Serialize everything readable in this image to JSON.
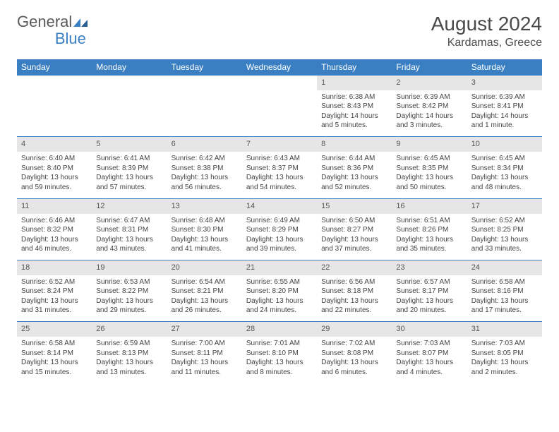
{
  "logo": {
    "text1": "General",
    "text2": "Blue"
  },
  "title": {
    "month": "August 2024",
    "location": "Kardamas, Greece"
  },
  "colors": {
    "header_bg": "#3a7fc2",
    "header_fg": "#ffffff",
    "daynum_bg": "#e6e6e6",
    "row_border": "#3a7fc2",
    "text": "#444444"
  },
  "weekdays": [
    "Sunday",
    "Monday",
    "Tuesday",
    "Wednesday",
    "Thursday",
    "Friday",
    "Saturday"
  ],
  "weeks": [
    {
      "days": [
        null,
        null,
        null,
        null,
        {
          "n": "1",
          "sr": "Sunrise: 6:38 AM",
          "ss": "Sunset: 8:43 PM",
          "d1": "Daylight: 14 hours",
          "d2": "and 5 minutes."
        },
        {
          "n": "2",
          "sr": "Sunrise: 6:39 AM",
          "ss": "Sunset: 8:42 PM",
          "d1": "Daylight: 14 hours",
          "d2": "and 3 minutes."
        },
        {
          "n": "3",
          "sr": "Sunrise: 6:39 AM",
          "ss": "Sunset: 8:41 PM",
          "d1": "Daylight: 14 hours",
          "d2": "and 1 minute."
        }
      ]
    },
    {
      "days": [
        {
          "n": "4",
          "sr": "Sunrise: 6:40 AM",
          "ss": "Sunset: 8:40 PM",
          "d1": "Daylight: 13 hours",
          "d2": "and 59 minutes."
        },
        {
          "n": "5",
          "sr": "Sunrise: 6:41 AM",
          "ss": "Sunset: 8:39 PM",
          "d1": "Daylight: 13 hours",
          "d2": "and 57 minutes."
        },
        {
          "n": "6",
          "sr": "Sunrise: 6:42 AM",
          "ss": "Sunset: 8:38 PM",
          "d1": "Daylight: 13 hours",
          "d2": "and 56 minutes."
        },
        {
          "n": "7",
          "sr": "Sunrise: 6:43 AM",
          "ss": "Sunset: 8:37 PM",
          "d1": "Daylight: 13 hours",
          "d2": "and 54 minutes."
        },
        {
          "n": "8",
          "sr": "Sunrise: 6:44 AM",
          "ss": "Sunset: 8:36 PM",
          "d1": "Daylight: 13 hours",
          "d2": "and 52 minutes."
        },
        {
          "n": "9",
          "sr": "Sunrise: 6:45 AM",
          "ss": "Sunset: 8:35 PM",
          "d1": "Daylight: 13 hours",
          "d2": "and 50 minutes."
        },
        {
          "n": "10",
          "sr": "Sunrise: 6:45 AM",
          "ss": "Sunset: 8:34 PM",
          "d1": "Daylight: 13 hours",
          "d2": "and 48 minutes."
        }
      ]
    },
    {
      "days": [
        {
          "n": "11",
          "sr": "Sunrise: 6:46 AM",
          "ss": "Sunset: 8:32 PM",
          "d1": "Daylight: 13 hours",
          "d2": "and 46 minutes."
        },
        {
          "n": "12",
          "sr": "Sunrise: 6:47 AM",
          "ss": "Sunset: 8:31 PM",
          "d1": "Daylight: 13 hours",
          "d2": "and 43 minutes."
        },
        {
          "n": "13",
          "sr": "Sunrise: 6:48 AM",
          "ss": "Sunset: 8:30 PM",
          "d1": "Daylight: 13 hours",
          "d2": "and 41 minutes."
        },
        {
          "n": "14",
          "sr": "Sunrise: 6:49 AM",
          "ss": "Sunset: 8:29 PM",
          "d1": "Daylight: 13 hours",
          "d2": "and 39 minutes."
        },
        {
          "n": "15",
          "sr": "Sunrise: 6:50 AM",
          "ss": "Sunset: 8:27 PM",
          "d1": "Daylight: 13 hours",
          "d2": "and 37 minutes."
        },
        {
          "n": "16",
          "sr": "Sunrise: 6:51 AM",
          "ss": "Sunset: 8:26 PM",
          "d1": "Daylight: 13 hours",
          "d2": "and 35 minutes."
        },
        {
          "n": "17",
          "sr": "Sunrise: 6:52 AM",
          "ss": "Sunset: 8:25 PM",
          "d1": "Daylight: 13 hours",
          "d2": "and 33 minutes."
        }
      ]
    },
    {
      "days": [
        {
          "n": "18",
          "sr": "Sunrise: 6:52 AM",
          "ss": "Sunset: 8:24 PM",
          "d1": "Daylight: 13 hours",
          "d2": "and 31 minutes."
        },
        {
          "n": "19",
          "sr": "Sunrise: 6:53 AM",
          "ss": "Sunset: 8:22 PM",
          "d1": "Daylight: 13 hours",
          "d2": "and 29 minutes."
        },
        {
          "n": "20",
          "sr": "Sunrise: 6:54 AM",
          "ss": "Sunset: 8:21 PM",
          "d1": "Daylight: 13 hours",
          "d2": "and 26 minutes."
        },
        {
          "n": "21",
          "sr": "Sunrise: 6:55 AM",
          "ss": "Sunset: 8:20 PM",
          "d1": "Daylight: 13 hours",
          "d2": "and 24 minutes."
        },
        {
          "n": "22",
          "sr": "Sunrise: 6:56 AM",
          "ss": "Sunset: 8:18 PM",
          "d1": "Daylight: 13 hours",
          "d2": "and 22 minutes."
        },
        {
          "n": "23",
          "sr": "Sunrise: 6:57 AM",
          "ss": "Sunset: 8:17 PM",
          "d1": "Daylight: 13 hours",
          "d2": "and 20 minutes."
        },
        {
          "n": "24",
          "sr": "Sunrise: 6:58 AM",
          "ss": "Sunset: 8:16 PM",
          "d1": "Daylight: 13 hours",
          "d2": "and 17 minutes."
        }
      ]
    },
    {
      "days": [
        {
          "n": "25",
          "sr": "Sunrise: 6:58 AM",
          "ss": "Sunset: 8:14 PM",
          "d1": "Daylight: 13 hours",
          "d2": "and 15 minutes."
        },
        {
          "n": "26",
          "sr": "Sunrise: 6:59 AM",
          "ss": "Sunset: 8:13 PM",
          "d1": "Daylight: 13 hours",
          "d2": "and 13 minutes."
        },
        {
          "n": "27",
          "sr": "Sunrise: 7:00 AM",
          "ss": "Sunset: 8:11 PM",
          "d1": "Daylight: 13 hours",
          "d2": "and 11 minutes."
        },
        {
          "n": "28",
          "sr": "Sunrise: 7:01 AM",
          "ss": "Sunset: 8:10 PM",
          "d1": "Daylight: 13 hours",
          "d2": "and 8 minutes."
        },
        {
          "n": "29",
          "sr": "Sunrise: 7:02 AM",
          "ss": "Sunset: 8:08 PM",
          "d1": "Daylight: 13 hours",
          "d2": "and 6 minutes."
        },
        {
          "n": "30",
          "sr": "Sunrise: 7:03 AM",
          "ss": "Sunset: 8:07 PM",
          "d1": "Daylight: 13 hours",
          "d2": "and 4 minutes."
        },
        {
          "n": "31",
          "sr": "Sunrise: 7:03 AM",
          "ss": "Sunset: 8:05 PM",
          "d1": "Daylight: 13 hours",
          "d2": "and 2 minutes."
        }
      ]
    }
  ]
}
